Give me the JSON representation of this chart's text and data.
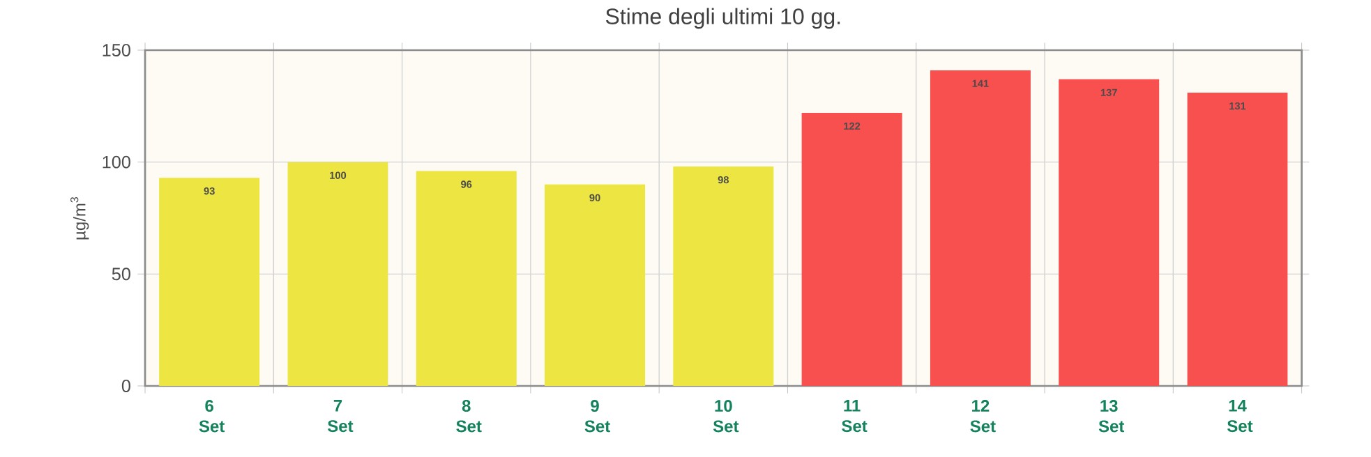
{
  "chart_data": {
    "type": "bar",
    "title": "Stime degli ultimi 10 gg.",
    "ylabel": "µg/m$^{3}$",
    "categories": [
      "6 Set",
      "7 Set",
      "8 Set",
      "9 Set",
      "10 Set",
      "11 Set",
      "12 Set",
      "13 Set",
      "14 Set"
    ],
    "values": [
      93,
      100,
      96,
      90,
      98,
      122,
      141,
      137,
      131
    ],
    "colors": [
      "#ede542",
      "#ede542",
      "#ede542",
      "#ede542",
      "#ede542",
      "#f84f4f",
      "#f84f4f",
      "#f84f4f",
      "#f84f4f"
    ],
    "ylim": [
      0,
      150
    ],
    "yticks": [
      0,
      50,
      100,
      150
    ],
    "grid": true,
    "data_labels": true
  }
}
